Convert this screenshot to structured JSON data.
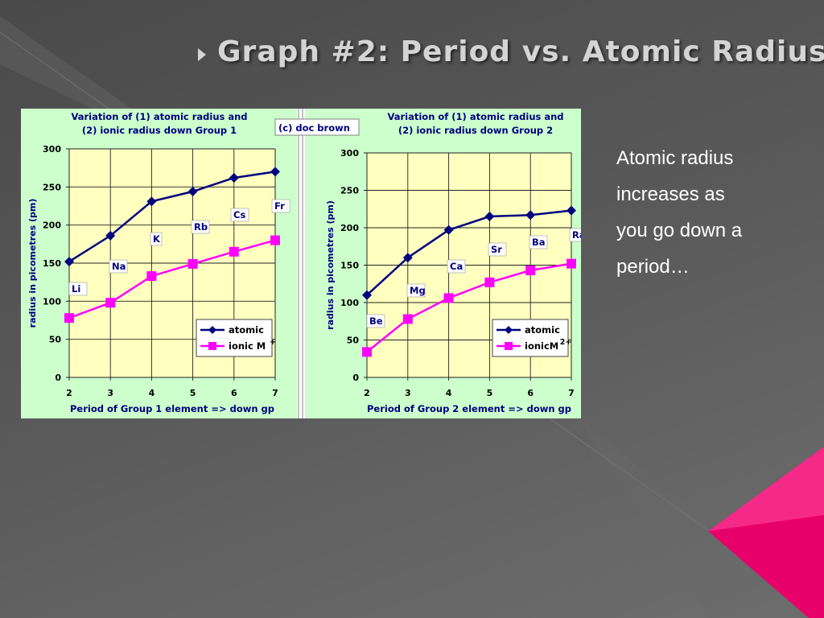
{
  "slide": {
    "title": "Graph #2:  Period vs. Atomic Radius",
    "body_lines": [
      "Atomic radius",
      "increases as",
      "you go down a",
      "period…"
    ]
  },
  "colors": {
    "background": "#565656",
    "atomic_series": "#000080",
    "ionic_series": "#ff00ff",
    "plot_area": "#ffffc0",
    "chart_panel": "#ccffcc",
    "accent": "#e8006a"
  },
  "chart_data": [
    {
      "type": "line",
      "title_lines": [
        "Variation of (1) atomic radius and",
        "(2) ionic radius down Group 1"
      ],
      "credit": "(c) doc brown",
      "xlabel": "Period of Group 1 element => down gp",
      "ylabel": "radius in picometres (pm)",
      "x": [
        2,
        3,
        4,
        5,
        6,
        7
      ],
      "xlim": [
        2,
        7
      ],
      "ylim": [
        0,
        300
      ],
      "yticks": [
        0,
        50,
        100,
        150,
        200,
        250,
        300
      ],
      "grid": true,
      "legend": "bottom-right",
      "element_labels": [
        "Li",
        "Na",
        "K",
        "Rb",
        "Cs",
        "Fr"
      ],
      "series": [
        {
          "name": "atomic",
          "values": [
            152,
            186,
            231,
            244,
            262,
            270
          ]
        },
        {
          "name": "ionic M",
          "superscript": "+",
          "values": [
            78,
            98,
            133,
            149,
            165,
            180
          ]
        }
      ]
    },
    {
      "type": "line",
      "title_lines": [
        "Variation of (1) atomic radius and",
        "(2) ionic radius down Group 2"
      ],
      "xlabel": "Period of Group 2 element => down gp",
      "ylabel": "radius in picometres (pm)",
      "x": [
        2,
        3,
        4,
        5,
        6,
        7
      ],
      "xlim": [
        2,
        7
      ],
      "ylim": [
        0,
        300
      ],
      "yticks": [
        0,
        50,
        100,
        150,
        200,
        250,
        300
      ],
      "grid": true,
      "legend": "bottom-right",
      "element_labels": [
        "Be",
        "Mg",
        "Ca",
        "Sr",
        "Ba",
        "Ra"
      ],
      "series": [
        {
          "name": "atomic",
          "values": [
            110,
            160,
            197,
            215,
            217,
            223
          ]
        },
        {
          "name": "ionicM",
          "superscript": "2+",
          "values": [
            34,
            78,
            106,
            127,
            143,
            152
          ]
        }
      ]
    }
  ]
}
